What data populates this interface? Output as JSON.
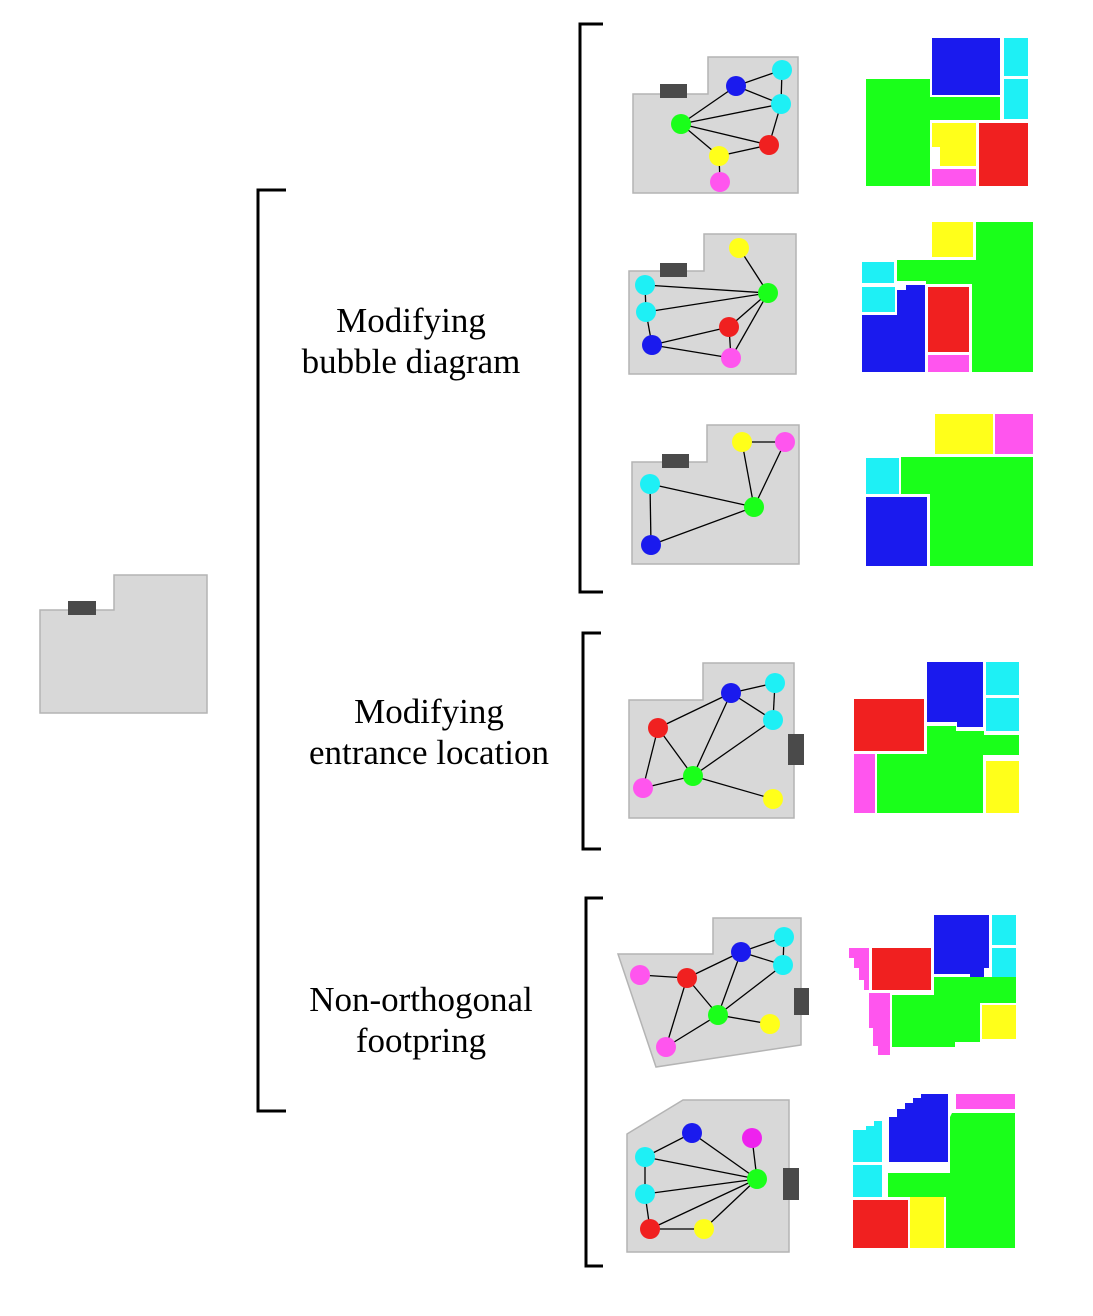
{
  "labels": {
    "group1_line1": "Modifying",
    "group1_line2": "bubble diagram",
    "group2_line1": "Modifying",
    "group2_line2": "entrance location",
    "group3_line1": "Non-orthogonal",
    "group3_line2": "footpring"
  },
  "colors": {
    "footprint_fill": "#d8d8d8",
    "footprint_stroke": "#b4b4b4",
    "entrance": "#4a4a4a",
    "edge": "#000000",
    "bracket": "#000000",
    "room_blue": "#1a1aee",
    "room_cyan": "#1ef0f5",
    "room_green": "#1aff1a",
    "room_red": "#f02020",
    "room_yellow": "#ffff1a",
    "room_pink": "#ff55ee",
    "room_magenta": "#ee22ee"
  },
  "input_footprint": {
    "node_count": 0
  },
  "examples": [
    {
      "group": "Modifying bubble diagram",
      "nodes": [
        "blue",
        "cyan",
        "cyan",
        "green",
        "red",
        "yellow",
        "pink"
      ]
    },
    {
      "group": "Modifying bubble diagram",
      "nodes": [
        "yellow",
        "cyan",
        "cyan",
        "green",
        "red",
        "blue",
        "pink"
      ]
    },
    {
      "group": "Modifying bubble diagram",
      "nodes": [
        "yellow",
        "pink",
        "cyan",
        "green",
        "blue"
      ]
    },
    {
      "group": "Modifying entrance location",
      "nodes": [
        "blue",
        "cyan",
        "cyan",
        "red",
        "green",
        "pink",
        "yellow"
      ]
    },
    {
      "group": "Non-orthogonal footpring",
      "nodes": [
        "blue",
        "cyan",
        "cyan",
        "pink",
        "red",
        "green",
        "yellow",
        "pink"
      ]
    },
    {
      "group": "Non-orthogonal footpring",
      "nodes": [
        "magenta",
        "blue",
        "cyan",
        "cyan",
        "green",
        "red",
        "yellow"
      ]
    }
  ]
}
